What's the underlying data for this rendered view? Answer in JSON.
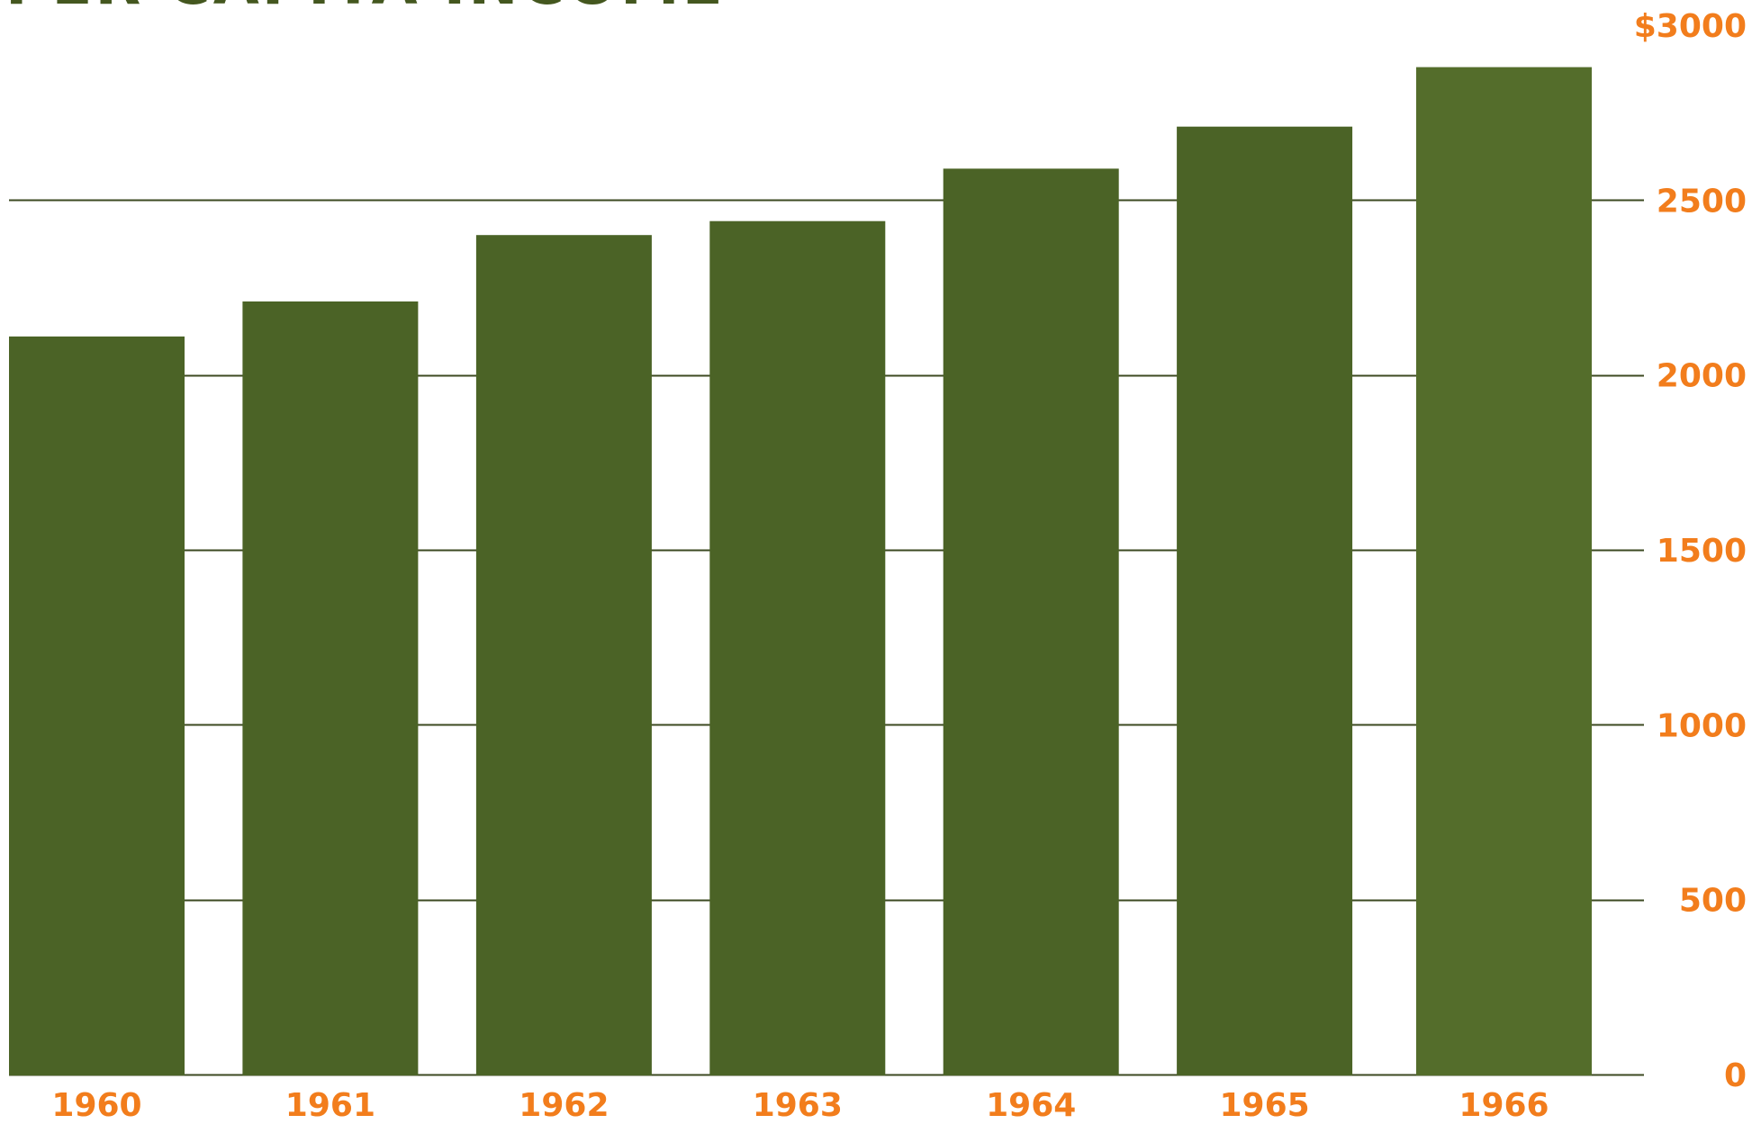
{
  "colors": {
    "bar": "#4b6326",
    "bar_highlight": "#546d2b",
    "grid": "#3c4a22",
    "label": "#f27d1c",
    "title": "#44571f",
    "background": "#ffffff"
  },
  "chart_data": {
    "type": "bar",
    "title": "PER CAPITA INCOME",
    "xlabel": "",
    "ylabel": "",
    "categories": [
      "1960",
      "1961",
      "1962",
      "1963",
      "1964",
      "1965",
      "1966"
    ],
    "values": [
      2110,
      2210,
      2400,
      2440,
      2590,
      2710,
      2880
    ],
    "ylim": [
      0,
      3000
    ],
    "y_ticks": [
      0,
      500,
      1000,
      1500,
      2000,
      2500,
      3000
    ],
    "y_tick_labels": [
      "0",
      "500",
      "1000",
      "1500",
      "2000",
      "2500",
      "$3000"
    ],
    "y_axis_side": "right",
    "grid": true,
    "legend": "none"
  }
}
